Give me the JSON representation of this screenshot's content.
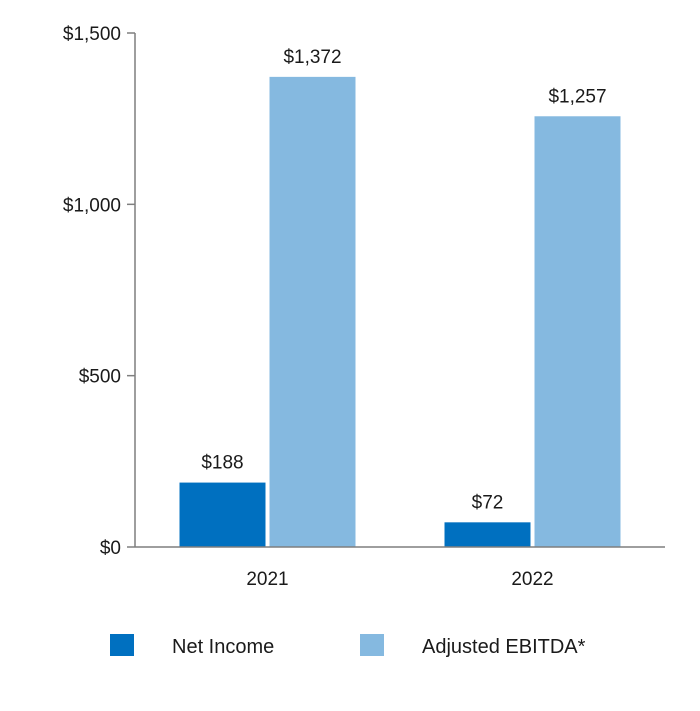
{
  "chart_data": {
    "type": "bar",
    "categories": [
      "2021",
      "2022"
    ],
    "series": [
      {
        "name": "Net Income",
        "values": [
          188,
          72
        ],
        "labels": [
          "$188",
          "$72"
        ],
        "color": "#0070c0"
      },
      {
        "name": "Adjusted EBITDA*",
        "values": [
          1372,
          1257
        ],
        "labels": [
          "$1,372",
          "$1,257"
        ],
        "color": "#85b9e0"
      }
    ],
    "ylim": [
      0,
      1500
    ],
    "yticks": [
      0,
      500,
      1000,
      1500
    ],
    "ytick_labels": [
      "$0",
      "$500",
      "$1,000",
      "$1,500"
    ],
    "grid": false,
    "legend_position": "bottom",
    "axis_color": "#7f7f7f"
  }
}
